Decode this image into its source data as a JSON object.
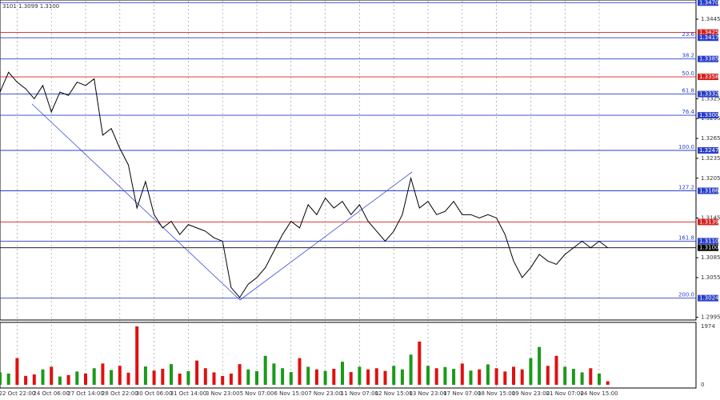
{
  "chart_data": {
    "type": "line",
    "title": "3101 1.3099 1.3100",
    "color": "#000000",
    "up_color": "#1a9a1a",
    "down_color": "#e01010",
    "categories": [
      null,
      null,
      "22 Oct 22:00",
      null,
      null,
      null,
      "24 Oct 06:00",
      null,
      null,
      null,
      "27 Oct 14:00",
      null,
      null,
      null,
      "28 Oct 22:00",
      null,
      null,
      null,
      "30 Oct 06:00",
      null,
      null,
      null,
      "31 Oct 14:00",
      null,
      null,
      null,
      "3 Nov 23:00",
      null,
      null,
      null,
      "5 Nov 07:00",
      null,
      null,
      null,
      "6 Nov 15:00",
      null,
      null,
      null,
      "7 Nov 23:00",
      null,
      null,
      null,
      "11 Nov 07:00",
      null,
      null,
      null,
      "12 Nov 15:00",
      null,
      null,
      null,
      "13 Nov 23:00",
      null,
      null,
      null,
      "17 Nov 07:00",
      null,
      null,
      null,
      "18 Nov 15:00",
      null,
      null,
      null,
      "19 Nov 23:00",
      null,
      null,
      null,
      "21 Nov 07:00",
      null,
      null,
      null,
      "24 Nov 15:00",
      null
    ],
    "values": [
      1.3335,
      1.3365,
      1.335,
      1.334,
      1.3325,
      1.3345,
      1.3305,
      1.3335,
      1.333,
      1.335,
      1.3345,
      1.3355,
      1.327,
      1.328,
      1.325,
      1.3225,
      1.316,
      1.32,
      1.315,
      1.313,
      1.314,
      1.312,
      1.3135,
      1.313,
      1.3125,
      1.3115,
      1.311,
      1.304,
      1.3025,
      1.3045,
      1.3055,
      1.307,
      1.3095,
      1.312,
      1.314,
      1.313,
      1.3165,
      1.315,
      1.3175,
      1.316,
      1.317,
      1.315,
      1.3165,
      1.314,
      1.3125,
      1.311,
      1.3125,
      1.315,
      1.3205,
      1.316,
      1.317,
      1.315,
      1.3155,
      1.317,
      1.315,
      1.315,
      1.3145,
      1.315,
      1.3145,
      1.312,
      1.308,
      1.3055,
      1.307,
      1.309,
      1.308,
      1.3075,
      1.309,
      1.31,
      1.311,
      1.31,
      1.311,
      1.31
    ],
    "ylim": [
      1.2991,
      1.3474
    ],
    "yticks": [
      {
        "value": 1.3445,
        "label": "1.3445"
      },
      {
        "value": 1.3325,
        "label": "1.3325"
      },
      {
        "value": 1.3295,
        "label": "1.3295"
      },
      {
        "value": 1.3265,
        "label": "1.3265"
      },
      {
        "value": 1.3235,
        "label": "1.3235"
      },
      {
        "value": 1.3205,
        "label": "1.3205"
      },
      {
        "value": 1.3145,
        "label": "1.3145"
      },
      {
        "value": 1.3085,
        "label": "1.3085"
      },
      {
        "value": 1.3055,
        "label": "1.3055"
      },
      {
        "value": 1.2995,
        "label": "1.2995"
      }
    ],
    "levels": [
      {
        "value": 1.347,
        "label": "1.3470",
        "color": "#2a3fc8"
      },
      {
        "value": 1.3425,
        "label": "1.3425",
        "color": "#d42020"
      },
      {
        "value": 1.3417,
        "label": "1.3417",
        "color": "#2a3fc8",
        "fib_label": "23.6"
      },
      {
        "value": 1.3385,
        "label": "1.3385",
        "color": "#2a3fc8",
        "fib_label": "38.2"
      },
      {
        "value": 1.3358,
        "label": "1.3358",
        "color": "#d42020",
        "fib_label": "50.0"
      },
      {
        "value": 1.3332,
        "label": "1.3332",
        "color": "#2a3fc8",
        "fib_label": "61.8"
      },
      {
        "value": 1.33,
        "label": "1.3300",
        "color": "#2a3fc8",
        "fib_label": "76.4"
      },
      {
        "value": 1.3247,
        "label": "1.3247",
        "color": "#2a3fc8",
        "fib_label": "100.0"
      },
      {
        "value": 1.3186,
        "label": "1.3186",
        "color": "#2a3fc8",
        "fib_label": "127.2"
      },
      {
        "value": 1.3139,
        "label": "1.3139",
        "color": "#d42020"
      },
      {
        "value": 1.311,
        "label": "1.3110",
        "color": "#2a3fc8",
        "fib_label": "161.8"
      },
      {
        "value": 1.31,
        "label": "1.3100",
        "color": "#000000"
      },
      {
        "value": 1.3024,
        "label": "1.3024",
        "color": "#2a3fc8",
        "fib_label": "200.0"
      }
    ],
    "volume": {
      "values": [
        420,
        380,
        900,
        300,
        350,
        520,
        610,
        280,
        330,
        450,
        380,
        560,
        720,
        500,
        640,
        410,
        1974,
        620,
        480,
        540,
        700,
        380,
        460,
        820,
        560,
        420,
        300,
        380,
        700,
        520,
        460,
        980,
        720,
        560,
        430,
        900,
        610,
        520,
        470,
        540,
        780,
        430,
        610,
        520,
        560,
        470,
        640,
        520,
        1020,
        1460,
        640,
        560,
        600,
        540,
        720,
        480,
        520,
        690,
        560,
        450,
        610,
        520,
        900,
        1280,
        640,
        980,
        610,
        540,
        420,
        560,
        380,
        120
      ],
      "ylim": [
        0,
        1974
      ],
      "yticks": [
        0,
        1974
      ]
    }
  }
}
